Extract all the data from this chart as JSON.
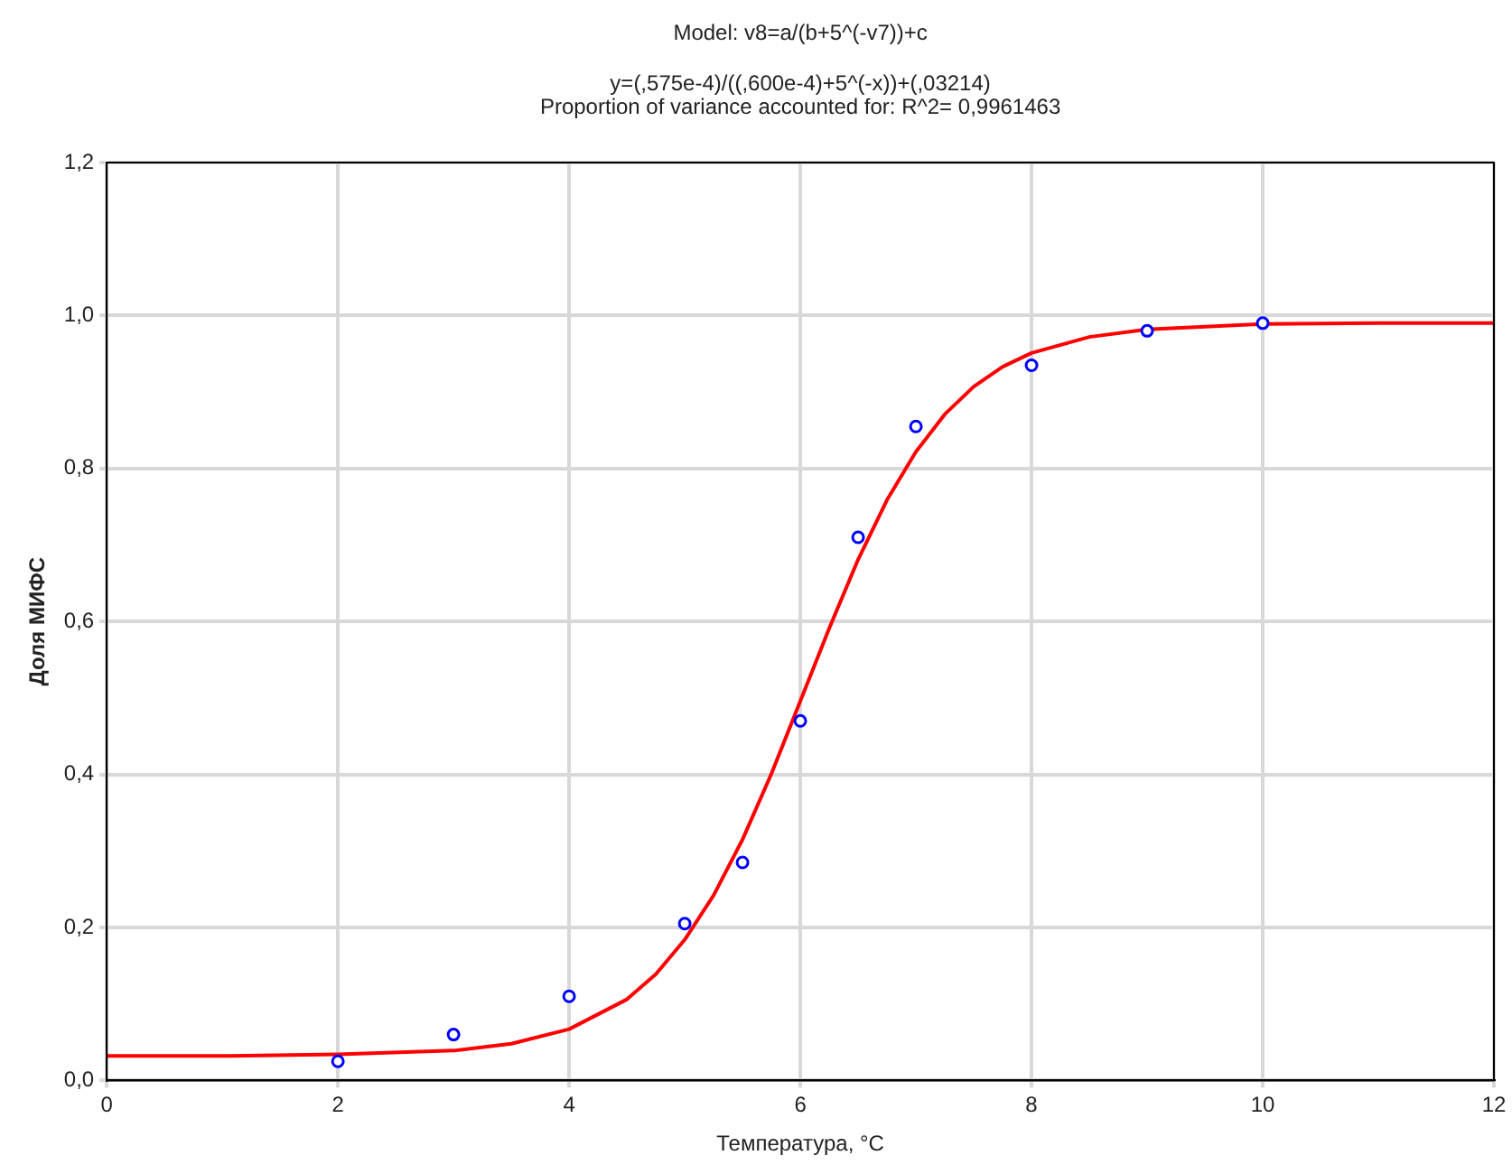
{
  "chart_data": {
    "type": "scatter",
    "title": "Model: v8=a/(b+5^(-v7))+c",
    "subtitle": "y=(,575e-4)/((,600e-4)+5^(-x))+(,03214)",
    "annotations": [
      "Proportion of variance accounted for: R^2= 0,9961463"
    ],
    "xlabel": "Температура, °C",
    "ylabel": "Доля МИФС",
    "series": [
      {
        "color": "#0000ff",
        "marker": "circle",
        "x": [
          2,
          3,
          4,
          5,
          5.5,
          6,
          6.5,
          7,
          8,
          9,
          10
        ],
        "values": [
          0.025,
          0.06,
          0.11,
          0.205,
          0.285,
          0.47,
          0.71,
          0.855,
          0.935,
          0.98,
          0.99
        ]
      },
      {
        "type": "line",
        "color": "#ff0000",
        "marker": "none",
        "x": [
          0,
          1,
          2,
          3,
          3.5,
          4,
          4.5,
          4.75,
          5,
          5.25,
          5.5,
          5.75,
          6,
          6.25,
          6.5,
          6.75,
          7,
          7.25,
          7.5,
          7.75,
          8,
          8.5,
          9,
          10,
          11,
          12
        ],
        "values": [
          0.032,
          0.032,
          0.034,
          0.039,
          0.048,
          0.067,
          0.106,
          0.139,
          0.184,
          0.242,
          0.315,
          0.401,
          0.496,
          0.591,
          0.681,
          0.759,
          0.822,
          0.871,
          0.907,
          0.933,
          0.951,
          0.972,
          0.982,
          0.989,
          0.99,
          0.99
        ]
      }
    ],
    "xlim": [
      0,
      12
    ],
    "xticks": [
      0,
      2,
      4,
      6,
      8,
      10,
      12
    ],
    "ylim": [
      0,
      1.2
    ],
    "yticks": [
      {
        "value": 0,
        "label": "0,0"
      },
      {
        "value": 0.2,
        "label": "0,2"
      },
      {
        "value": 0.4,
        "label": "0,4"
      },
      {
        "value": 0.6,
        "label": "0,6"
      },
      {
        "value": 0.8,
        "label": "0,8"
      },
      {
        "value": 1,
        "label": "1,0"
      },
      {
        "value": 1.2,
        "label": "1,2"
      }
    ],
    "grid": true
  }
}
